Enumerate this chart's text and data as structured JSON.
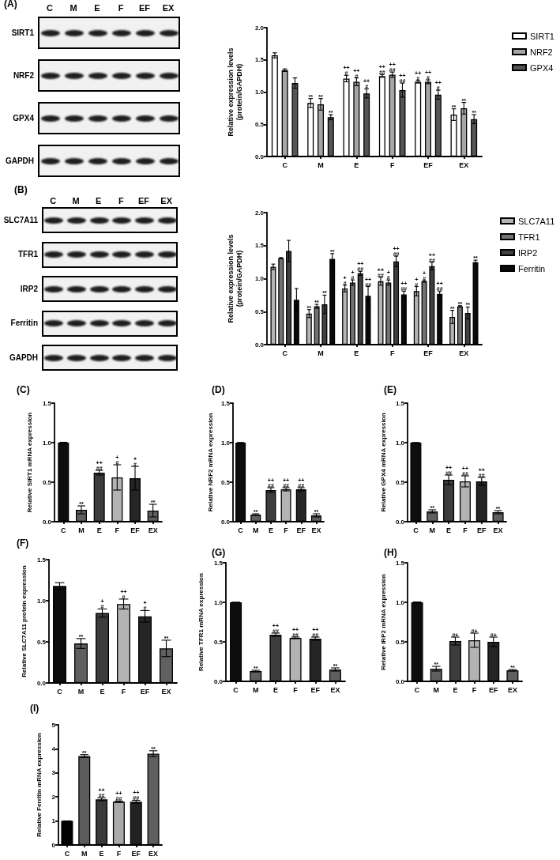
{
  "chart_data": [
    {
      "type": "other",
      "title": "(A)",
      "categories": [
        "C",
        "M",
        "E",
        "F",
        "EF",
        "EX"
      ],
      "y_categories": [
        "SIRT1",
        "NRF2",
        "GPX4",
        "GAPDH"
      ]
    },
    {
      "type": "bar",
      "ylabel": "Relative expression levels\n(protein/GAPDH)",
      "categories": [
        "C",
        "M",
        "E",
        "F",
        "EF",
        "EX"
      ],
      "series": [
        {
          "name": "SIRT1",
          "color": "#ffffff",
          "values": [
            1.57,
            0.83,
            1.21,
            1.25,
            1.16,
            0.65
          ],
          "errors": [
            0.04,
            0.07,
            0.05,
            0.02,
            0.02,
            0.09
          ],
          "value_labels": [
            null,
            "**",
            "++\n#",
            "++\n##",
            "++\n#",
            "**"
          ]
        },
        {
          "name": "NRF2",
          "color": "#a6a6a6",
          "values": [
            1.34,
            0.81,
            1.16,
            1.27,
            1.16,
            0.75
          ],
          "errors": [
            0.02,
            0.09,
            0.06,
            0.04,
            0.03,
            0.09
          ],
          "value_labels": [
            null,
            "**",
            "++\n#",
            "++\n##",
            "++\n#",
            "**"
          ]
        },
        {
          "name": "GPX4",
          "color": "#555555",
          "values": [
            1.14,
            0.61,
            0.98,
            1.03,
            0.96,
            0.58
          ],
          "errors": [
            0.08,
            0.04,
            0.07,
            0.11,
            0.07,
            0.07
          ],
          "value_labels": [
            null,
            "**",
            "++\n#",
            "++\n##",
            "++\n#",
            "**"
          ]
        }
      ],
      "ylim": [
        0,
        2
      ],
      "yticks": [
        {
          "value": 0,
          "label": "0.0"
        },
        0.5,
        {
          "value": 1,
          "label": "1.0"
        },
        1.5,
        {
          "value": 2,
          "label": "2.0"
        }
      ],
      "legend": "top right"
    },
    {
      "type": "other",
      "title": "(B)",
      "categories": [
        "C",
        "M",
        "E",
        "F",
        "EF",
        "EX"
      ],
      "y_categories": [
        "SLC7A11",
        "TFR1",
        "IRP2",
        "Ferritin",
        "GAPDH"
      ]
    },
    {
      "type": "bar",
      "ylabel": "Relative expression levels\n(protein/GAPDH)",
      "categories": [
        "C",
        "M",
        "E",
        "F",
        "EF",
        "EX"
      ],
      "series": [
        {
          "name": "SLC7A11",
          "color": "#b5b5b5",
          "values": [
            1.18,
            0.47,
            0.85,
            0.96,
            0.81,
            0.42
          ],
          "errors": [
            0.04,
            0.06,
            0.05,
            0.06,
            0.07,
            0.1
          ],
          "value_labels": [
            null,
            "**",
            "+\n#",
            "++\n##",
            "+\n#",
            "**"
          ]
        },
        {
          "name": "TFR1",
          "color": "#737373",
          "values": [
            1.31,
            0.58,
            0.94,
            0.94,
            0.96,
            0.58
          ],
          "errors": [
            0.01,
            0.03,
            0.04,
            0.04,
            0.01,
            0.01
          ],
          "value_labels": [
            null,
            "**",
            "+\n#",
            "+\n#",
            "+\n#",
            "**"
          ]
        },
        {
          "name": "IRP2",
          "color": "#404040",
          "values": [
            1.42,
            0.61,
            1.08,
            1.26,
            1.19,
            0.48
          ],
          "errors": [
            0.16,
            0.14,
            0.03,
            0.08,
            0.06,
            0.09
          ],
          "value_labels": [
            null,
            "**",
            "++\n##",
            "++\n##",
            "++\n##",
            "**"
          ]
        },
        {
          "name": "Ferritin",
          "color": "#0a0a0a",
          "values": [
            0.68,
            1.3,
            0.74,
            0.76,
            0.77,
            1.25
          ],
          "errors": [
            0.17,
            0.08,
            0.14,
            0.05,
            0.04,
            0.03
          ],
          "value_labels": [
            null,
            "**",
            "++\n##",
            "++\n##",
            "++\n##",
            "**"
          ]
        }
      ],
      "ylim": [
        0,
        2
      ],
      "yticks": [
        {
          "value": 0,
          "label": "0.0"
        },
        0.5,
        {
          "value": 1,
          "label": "1.0"
        },
        1.5,
        {
          "value": 2,
          "label": "2.0"
        }
      ],
      "legend": "top right"
    },
    {
      "type": "bar",
      "title": "(C)",
      "ylabel": "Relative SIRT1 mRNA expression",
      "categories": [
        "C",
        "M",
        "E",
        "F",
        "EF",
        "EX"
      ],
      "values": [
        1,
        0.15,
        0.62,
        0.56,
        0.55,
        0.14
      ],
      "errors": [
        0.005,
        0.05,
        0.03,
        0.16,
        0.15,
        0.08
      ],
      "value_labels": [
        null,
        "**",
        "++\n##",
        "+\n#",
        "+\n#",
        "**"
      ],
      "colors": [
        "#0d0d0d",
        "#5f5f5f",
        "#3c3c3c",
        "#b3b3b3",
        "#252525",
        "#606060"
      ],
      "ylim": [
        0,
        1.5
      ],
      "yticks": [
        {
          "value": 0,
          "label": "0.0"
        },
        0.5,
        {
          "value": 1,
          "label": "1.0"
        },
        1.5
      ]
    },
    {
      "type": "bar",
      "title": "(D)",
      "ylabel": "Relative NRF2 mRNA expression",
      "categories": [
        "C",
        "M",
        "E",
        "F",
        "EF",
        "EX"
      ],
      "values": [
        1,
        0.09,
        0.4,
        0.41,
        0.41,
        0.08
      ],
      "errors": [
        0,
        0.01,
        0.03,
        0.02,
        0.02,
        0.02
      ],
      "value_labels": [
        null,
        "**",
        "++\n##",
        "++\n##",
        "++\n##",
        "**"
      ],
      "colors": [
        "#0d0d0d",
        "#5f5f5f",
        "#3c3c3c",
        "#b3b3b3",
        "#252525",
        "#606060"
      ],
      "ylim": [
        0,
        1.5
      ],
      "yticks": [
        {
          "value": 0,
          "label": "0.0"
        },
        0.5,
        {
          "value": 1,
          "label": "1.0"
        },
        1.5
      ]
    },
    {
      "type": "bar",
      "title": "(E)",
      "ylabel": "Relative GPX4 mRNA expression",
      "categories": [
        "C",
        "M",
        "E",
        "F",
        "EF",
        "EX"
      ],
      "values": [
        1,
        0.13,
        0.53,
        0.51,
        0.51,
        0.12
      ],
      "errors": [
        0,
        0.02,
        0.06,
        0.07,
        0.05,
        0.02
      ],
      "value_labels": [
        null,
        "**",
        "++\n##",
        "++\n##",
        "++\n##",
        "**"
      ],
      "colors": [
        "#0d0d0d",
        "#5f5f5f",
        "#3c3c3c",
        "#b3b3b3",
        "#252525",
        "#606060"
      ],
      "ylim": [
        0,
        1.5
      ],
      "yticks": [
        {
          "value": 0,
          "label": "0.0"
        },
        0.5,
        {
          "value": 1,
          "label": "1.0"
        },
        1.5
      ]
    },
    {
      "type": "bar",
      "title": "(F)",
      "ylabel": "Relative SLC7A11 protein expression",
      "categories": [
        "C",
        "M",
        "E",
        "F",
        "EF",
        "EX"
      ],
      "values": [
        1.18,
        0.48,
        0.85,
        0.96,
        0.81,
        0.42
      ],
      "errors": [
        0.04,
        0.06,
        0.05,
        0.06,
        0.07,
        0.1
      ],
      "value_labels": [
        null,
        "**",
        "+\n#",
        "++\n#",
        "+\n#",
        "**"
      ],
      "colors": [
        "#0d0d0d",
        "#5f5f5f",
        "#3c3c3c",
        "#b3b3b3",
        "#252525",
        "#606060"
      ],
      "ylim": [
        0,
        1.5
      ],
      "yticks": [
        {
          "value": 0,
          "label": "0.0"
        },
        0.5,
        {
          "value": 1,
          "label": "1.0"
        },
        1.5
      ]
    },
    {
      "type": "bar",
      "title": "(G)",
      "ylabel": "Relative TFR1 mRNA expression",
      "categories": [
        "C",
        "M",
        "E",
        "F",
        "EF",
        "EX"
      ],
      "values": [
        1,
        0.13,
        0.59,
        0.55,
        0.54,
        0.15
      ],
      "errors": [
        0,
        0.01,
        0.02,
        0.01,
        0.02,
        0.02
      ],
      "value_labels": [
        null,
        "**",
        "++\n##",
        "++\n##",
        "++\n##",
        "**"
      ],
      "colors": [
        "#0d0d0d",
        "#5f5f5f",
        "#3c3c3c",
        "#b3b3b3",
        "#252525",
        "#606060"
      ],
      "ylim": [
        0,
        1.5
      ],
      "yticks": [
        {
          "value": 0,
          "label": "0.0"
        },
        0.5,
        {
          "value": 1,
          "label": "1.0"
        },
        1.5
      ]
    },
    {
      "type": "bar",
      "title": "(H)",
      "ylabel": "Relative IRP2 mRNA expression",
      "categories": [
        "C",
        "M",
        "E",
        "F",
        "EF",
        "EX"
      ],
      "values": [
        1,
        0.16,
        0.51,
        0.52,
        0.5,
        0.14
      ],
      "errors": [
        0.005,
        0.03,
        0.05,
        0.09,
        0.06,
        0.01
      ],
      "value_labels": [
        null,
        "**",
        "#+",
        "#+",
        "#+",
        "**"
      ],
      "colors": [
        "#0d0d0d",
        "#5f5f5f",
        "#3c3c3c",
        "#b3b3b3",
        "#252525",
        "#606060"
      ],
      "ylim": [
        0,
        1.5
      ],
      "yticks": [
        {
          "value": 0,
          "label": "0.0"
        },
        0.5,
        {
          "value": 1,
          "label": "1.0"
        },
        1.5
      ]
    },
    {
      "type": "bar",
      "title": "(I)",
      "ylabel": "Relative Ferritin mRNA expression",
      "categories": [
        "C",
        "M",
        "E",
        "F",
        "EF",
        "EX"
      ],
      "values": [
        1,
        3.7,
        1.9,
        1.8,
        1.8,
        3.8
      ],
      "errors": [
        0,
        0.06,
        0.06,
        0.03,
        0.06,
        0.12
      ],
      "value_labels": [
        null,
        "**",
        "++\n##",
        "++\n##",
        "++\n##",
        "**"
      ],
      "colors": [
        "#000000",
        "#5c5c5c",
        "#3a3a3a",
        "#aaaaaa",
        "#222222",
        "#5f5f5f"
      ],
      "ylim": [
        0,
        5
      ],
      "yticks": [
        0,
        1,
        2,
        3,
        4,
        5
      ]
    }
  ]
}
